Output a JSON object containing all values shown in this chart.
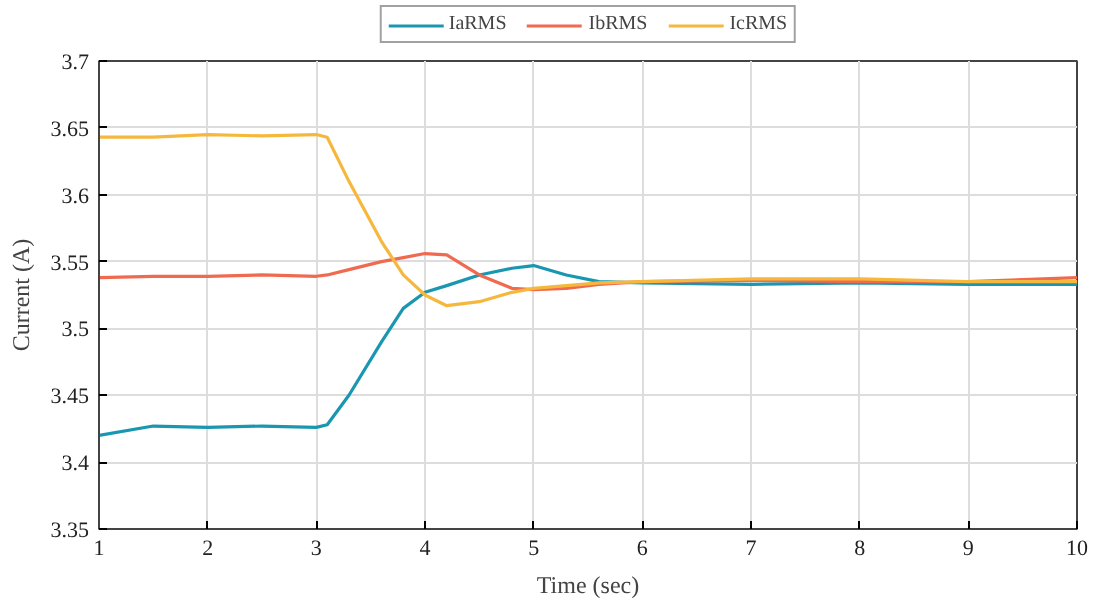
{
  "chart_data": {
    "type": "line",
    "xlabel": "Time (sec)",
    "ylabel": "Current (A)",
    "xlim": [
      1,
      10
    ],
    "xticks": [
      1,
      2,
      3,
      4,
      5,
      6,
      7,
      8,
      9,
      10
    ],
    "ylim": [
      3.35,
      3.7
    ],
    "yticks": [
      3.35,
      3.4,
      3.45,
      3.5,
      3.55,
      3.6,
      3.65,
      3.7
    ],
    "grid": true,
    "legend": "top",
    "line_style": "solid",
    "x": [
      1,
      1.5,
      2,
      2.5,
      3,
      3.1,
      3.3,
      3.6,
      3.8,
      4,
      4.2,
      4.5,
      4.8,
      5,
      5.3,
      5.6,
      6,
      7,
      8,
      9,
      10
    ],
    "series": [
      {
        "name": "IaRMS",
        "color": "#1a97b0",
        "values": [
          3.42,
          3.427,
          3.426,
          3.427,
          3.426,
          3.428,
          3.45,
          3.49,
          3.515,
          3.527,
          3.532,
          3.54,
          3.545,
          3.547,
          3.54,
          3.535,
          3.534,
          3.533,
          3.534,
          3.533,
          3.533
        ]
      },
      {
        "name": "IbRMS",
        "color": "#f06a4f",
        "values": [
          3.538,
          3.539,
          3.539,
          3.54,
          3.539,
          3.54,
          3.544,
          3.55,
          3.553,
          3.556,
          3.555,
          3.54,
          3.53,
          3.529,
          3.53,
          3.533,
          3.535,
          3.536,
          3.535,
          3.535,
          3.538
        ]
      },
      {
        "name": "IcRMS",
        "color": "#f6b83c",
        "values": [
          3.643,
          3.643,
          3.645,
          3.644,
          3.645,
          3.643,
          3.61,
          3.565,
          3.54,
          3.525,
          3.517,
          3.52,
          3.527,
          3.53,
          3.532,
          3.534,
          3.535,
          3.537,
          3.537,
          3.535,
          3.535
        ]
      }
    ]
  }
}
